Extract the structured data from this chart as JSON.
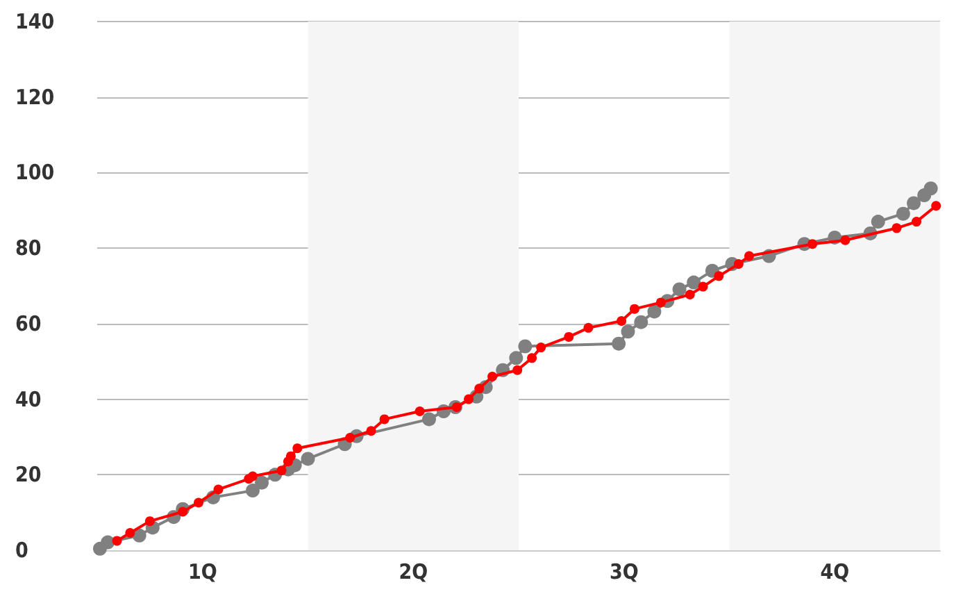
{
  "chart_data": {
    "type": "line",
    "xlim": [
      0,
      4
    ],
    "xticks": [
      {
        "value": 0.5,
        "label": "1Q"
      },
      {
        "value": 1.5,
        "label": "2Q"
      },
      {
        "value": 2.5,
        "label": "3Q"
      },
      {
        "value": 3.5,
        "label": "4Q"
      }
    ],
    "ylim": [
      0,
      140
    ],
    "yticks": [
      0,
      20,
      40,
      60,
      80,
      100,
      120,
      140
    ],
    "grid": "y",
    "marker": "circle",
    "line_style": "solid",
    "bands": [
      {
        "axis": "x",
        "from": 1,
        "to": 2,
        "color": "#f5f5f5"
      },
      {
        "axis": "x",
        "from": 3,
        "to": 4,
        "color": "#f5f5f5"
      }
    ],
    "series": [
      {
        "color": "#808080",
        "x": [
          0.013,
          0.05,
          0.2,
          0.263,
          0.363,
          0.406,
          0.55,
          0.738,
          0.781,
          0.844,
          0.906,
          0.938,
          1.0,
          1.175,
          1.231,
          1.575,
          1.644,
          1.7,
          1.8,
          1.844,
          1.925,
          1.988,
          2.031,
          2.475,
          2.519,
          2.581,
          2.644,
          2.706,
          2.763,
          2.831,
          2.919,
          3.013,
          3.188,
          3.356,
          3.5,
          3.669,
          3.706,
          3.825,
          3.875,
          3.925,
          3.956
        ],
        "values": [
          0.4,
          2.1,
          3.9,
          6.0,
          8.8,
          10.9,
          14.0,
          15.8,
          17.9,
          20.0,
          21.4,
          22.5,
          24.2,
          28.1,
          30.2,
          34.7,
          36.8,
          37.9,
          40.7,
          43.2,
          47.7,
          50.9,
          54.0,
          54.7,
          57.9,
          60.4,
          63.2,
          66.0,
          69.1,
          70.9,
          74.0,
          75.8,
          77.9,
          81.1,
          82.8,
          83.9,
          87.0,
          89.1,
          91.9,
          94.0,
          95.8
        ]
      },
      {
        "color": "#ff0000",
        "x": [
          0.094,
          0.156,
          0.25,
          0.406,
          0.481,
          0.575,
          0.719,
          0.738,
          0.875,
          0.906,
          0.919,
          0.95,
          1.2,
          1.3,
          1.363,
          1.531,
          1.706,
          1.763,
          1.813,
          1.875,
          1.994,
          2.063,
          2.106,
          2.238,
          2.331,
          2.488,
          2.55,
          2.675,
          2.813,
          2.875,
          2.95,
          3.044,
          3.094,
          3.394,
          3.55,
          3.794,
          3.888,
          3.981
        ],
        "values": [
          2.5,
          4.6,
          7.7,
          10.2,
          12.6,
          16.1,
          18.9,
          19.6,
          21.1,
          23.5,
          24.9,
          27.0,
          29.8,
          31.6,
          34.7,
          36.8,
          37.9,
          40.0,
          42.8,
          46.0,
          47.7,
          50.9,
          53.7,
          56.5,
          58.9,
          60.7,
          63.9,
          65.6,
          67.7,
          69.8,
          72.6,
          75.8,
          77.9,
          81.1,
          82.1,
          85.3,
          87.0,
          91.2
        ]
      }
    ]
  }
}
